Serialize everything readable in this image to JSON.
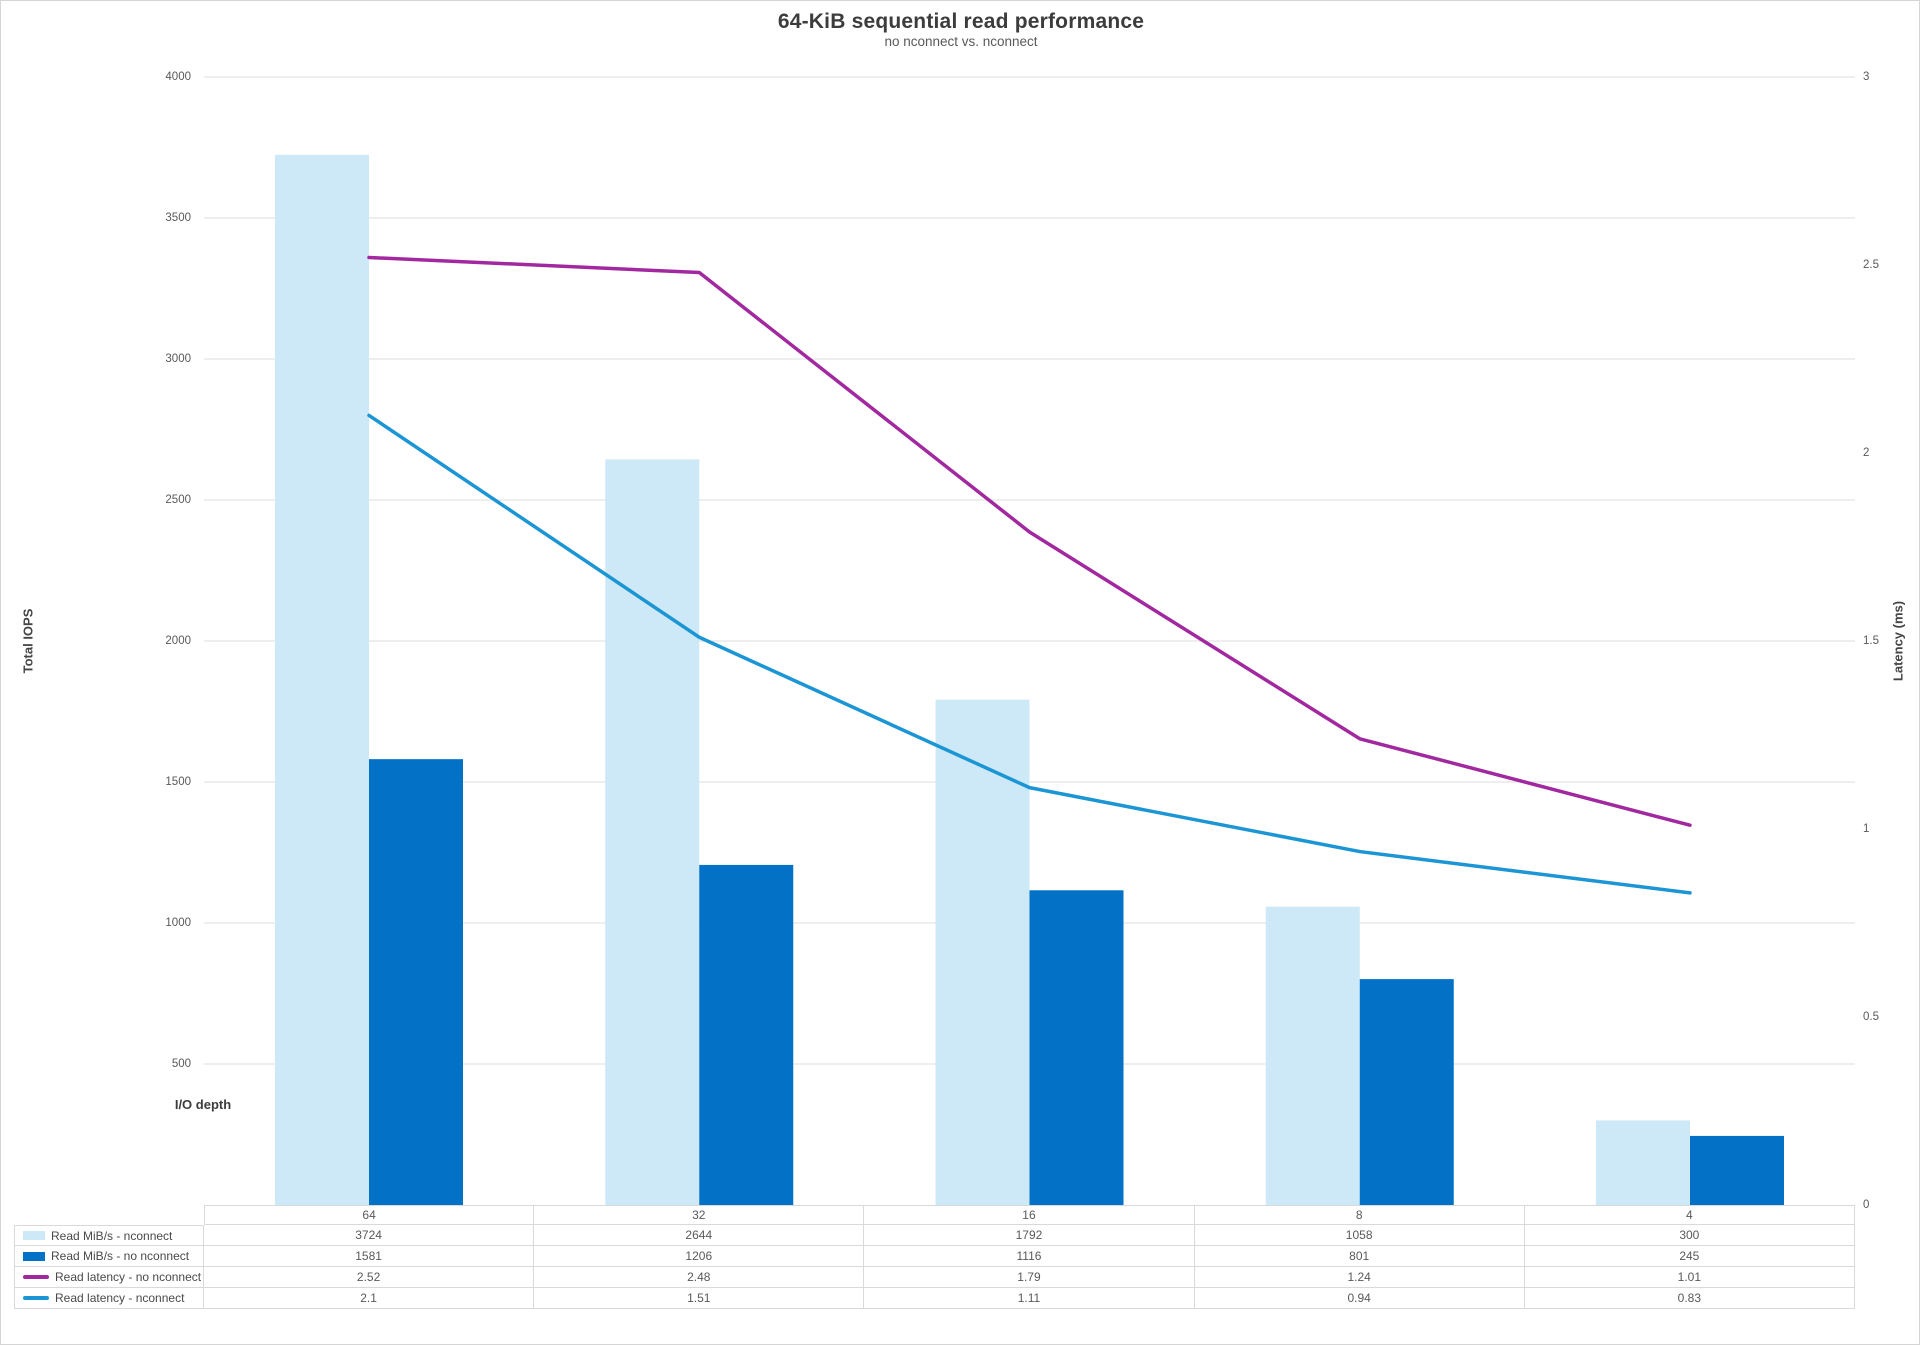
{
  "title": "64-KiB sequential read performance",
  "subtitle": "no nconnect vs. nconnect",
  "left_axis": {
    "title": "Total IOPS",
    "tick_labels": [
      "4000",
      "3500",
      "3000",
      "2500",
      "2000",
      "1500",
      "1000",
      "500"
    ],
    "tick_values": [
      4000,
      3500,
      3000,
      2500,
      2000,
      1500,
      1000,
      500
    ],
    "max": 4000
  },
  "right_axis": {
    "title": "Latency (ms)",
    "tick_labels": [
      "3",
      "2.5",
      "2",
      "1.5",
      "1",
      "0.5",
      "0"
    ],
    "tick_values": [
      3,
      2.5,
      2,
      1.5,
      1,
      0.5,
      0
    ],
    "max": 3
  },
  "x_axis": {
    "title": "I/O depth",
    "categories": [
      "64",
      "32",
      "16",
      "8",
      "4"
    ]
  },
  "chart_data": {
    "type": "bar+line combo",
    "categories": [
      "64",
      "32",
      "16",
      "8",
      "4"
    ],
    "series": [
      {
        "name": "Read MiB/s - nconnect",
        "type": "bar",
        "axis": "left",
        "color": "#cde9f8",
        "values": [
          3724,
          2644,
          1792,
          1058,
          300
        ]
      },
      {
        "name": "Read MiB/s - no nconnect",
        "type": "bar",
        "axis": "left",
        "color": "#0271c6",
        "values": [
          1581,
          1206,
          1116,
          801,
          245
        ]
      },
      {
        "name": "Read latency - no nconnect",
        "type": "line",
        "axis": "right",
        "color": "#a228a0",
        "values": [
          2.52,
          2.48,
          1.79,
          1.24,
          1.01
        ]
      },
      {
        "name": "Read latency - nconnect",
        "type": "line",
        "axis": "right",
        "color": "#1b95d3",
        "values": [
          2.1,
          1.51,
          1.11,
          0.94,
          0.83
        ]
      }
    ],
    "title": "64-KiB sequential read performance",
    "xlabel": "I/O depth",
    "ylabel": "Total IOPS",
    "ylabel_right": "Latency (ms)",
    "ylim": [
      0,
      4000
    ],
    "ylim_right": [
      0,
      3
    ],
    "grid": true,
    "legend_position": "table-bottom"
  },
  "table": {
    "rows": [
      {
        "label": "Read MiB/s - nconnect",
        "swatch": "bar",
        "color": "#cde9f8",
        "values": [
          "3724",
          "2644",
          "1792",
          "1058",
          "300"
        ]
      },
      {
        "label": "Read MiB/s - no nconnect",
        "swatch": "bar",
        "color": "#0271c6",
        "values": [
          "1581",
          "1206",
          "1116",
          "801",
          "245"
        ]
      },
      {
        "label": "Read latency - no nconnect",
        "swatch": "line",
        "color": "#a228a0",
        "values": [
          "2.52",
          "2.48",
          "1.79",
          "1.24",
          "1.01"
        ]
      },
      {
        "label": "Read latency - nconnect",
        "swatch": "line",
        "color": "#1b95d3",
        "values": [
          "2.1",
          "1.51",
          "1.11",
          "0.94",
          "0.83"
        ]
      }
    ]
  },
  "colors": {
    "bar_nconnect": "#cde9f8",
    "bar_no_nconnect": "#0271c6",
    "line_no_nconnect": "#a228a0",
    "line_nconnect": "#1b95d3",
    "gridline": "#dcdcdc",
    "table_border": "#d9d9d9",
    "text": "#595959"
  }
}
